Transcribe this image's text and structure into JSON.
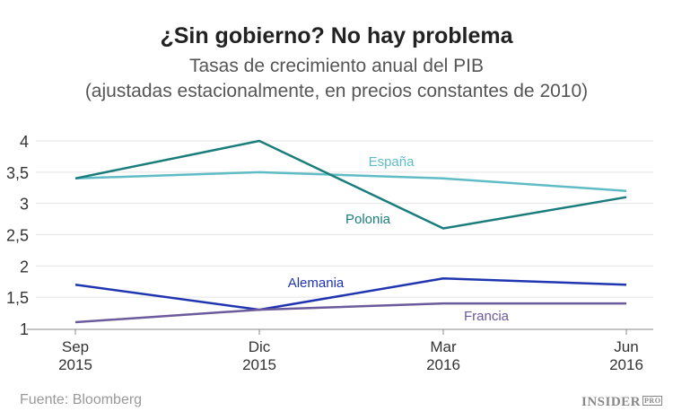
{
  "chart_data": {
    "type": "line",
    "title": "¿Sin gobierno? No hay problema",
    "subtitle_line1": "Tasas de crecimiento anual del PIB",
    "subtitle_line2": "(ajustadas estacionalmente, en precios constantes de 2010)",
    "categories": [
      [
        "Sep",
        "2015"
      ],
      [
        "Dic",
        "2015"
      ],
      [
        "Mar",
        "2016"
      ],
      [
        "Jun",
        "2016"
      ]
    ],
    "ylim": [
      1,
      4
    ],
    "yticks": [
      "1",
      "1,5",
      "2",
      "2,5",
      "3",
      "3,5",
      "4"
    ],
    "grid": true,
    "series": [
      {
        "name": "España",
        "color": "#5fbcc6",
        "values": [
          3.4,
          3.5,
          3.4,
          3.2
        ]
      },
      {
        "name": "Polonia",
        "color": "#1a7d7c",
        "values": [
          3.4,
          4.0,
          2.6,
          3.1
        ]
      },
      {
        "name": "Alemania",
        "color": "#1f35b0",
        "values": [
          1.7,
          1.3,
          1.8,
          1.7
        ]
      },
      {
        "name": "Francia",
        "color": "#6b5a9c",
        "values": [
          1.1,
          1.3,
          1.4,
          1.4
        ]
      }
    ]
  },
  "footer": {
    "source": "Fuente: Bloomberg",
    "logo": "INSIDER",
    "logo_badge": "PRO"
  }
}
